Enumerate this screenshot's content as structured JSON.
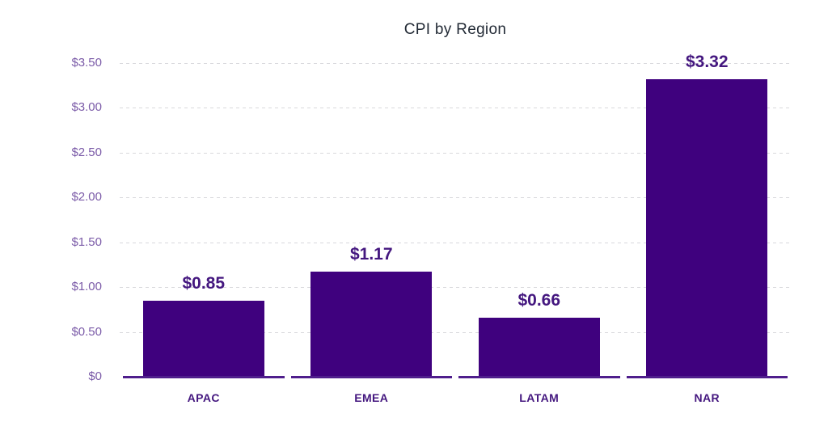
{
  "chart_data": {
    "type": "bar",
    "title": "CPI by Region",
    "categories": [
      "APAC",
      "EMEA",
      "LATAM",
      "NAR"
    ],
    "values": [
      0.85,
      1.17,
      0.66,
      3.32
    ],
    "value_labels": [
      "$0.85",
      "$1.17",
      "$0.66",
      "$3.32"
    ],
    "xlabel": "",
    "ylabel": "",
    "ylim": [
      0,
      3.5
    ],
    "yticks": [
      {
        "label": "$3.50",
        "value": 3.5
      },
      {
        "label": "$3.00",
        "value": 3.0
      },
      {
        "label": "$2.50",
        "value": 2.5
      },
      {
        "label": "$2.00",
        "value": 2.0
      },
      {
        "label": "$1.50",
        "value": 1.5
      },
      {
        "label": "$1.00",
        "value": 1.0
      },
      {
        "label": "$0.50",
        "value": 0.5
      },
      {
        "label": "$0",
        "value": 0
      }
    ],
    "grid": "horizontal-dashed",
    "legend": "none",
    "colors": {
      "bar": "#3F017E",
      "value_label": "#44177F",
      "category_label": "#44177F",
      "ytick_label": "#7B5BA8",
      "title": "#232B36",
      "gridline": "#D8D8DC",
      "baseline": "#4F1E8C",
      "background": "#FFFFFF"
    }
  }
}
